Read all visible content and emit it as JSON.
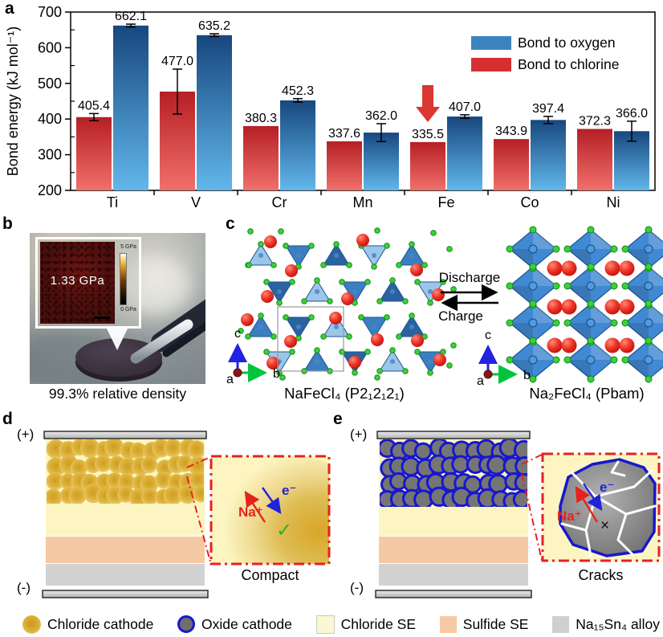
{
  "figure_labels": {
    "a": "a",
    "b": "b",
    "c": "c",
    "d": "d",
    "e": "e"
  },
  "chart_data": {
    "type": "bar",
    "ylabel": "Bond energy (kJ mol⁻¹)",
    "ylim": [
      200,
      700
    ],
    "yticks": [
      200,
      300,
      400,
      500,
      600,
      700
    ],
    "categories": [
      "Ti",
      "V",
      "Cr",
      "Mn",
      "Fe",
      "Co",
      "Ni"
    ],
    "series": [
      {
        "name": "Bond to chlorine",
        "values": [
          405.4,
          477.0,
          380.3,
          337.6,
          335.5,
          343.9,
          372.3
        ],
        "labels": [
          "405.4",
          "477.0",
          "380.3",
          "337.6",
          "335.5",
          "343.9",
          "372.3"
        ],
        "errors": [
          10,
          63,
          0,
          0,
          0,
          0,
          0
        ],
        "color_top": "#b51f25",
        "color_bottom": "#f1706b",
        "legend_color": "#d62f31"
      },
      {
        "name": "Bond to oxygen",
        "values": [
          662.1,
          635.2,
          452.3,
          362.0,
          407.0,
          397.4,
          366.0
        ],
        "labels": [
          "662.1",
          "635.2",
          "452.3",
          "362.0",
          "407.0",
          "397.4",
          "366.0"
        ],
        "errors": [
          4,
          4,
          5,
          25,
          5,
          10,
          28
        ],
        "color_top": "#17477e",
        "color_bottom": "#61b7eb",
        "legend_color": "#3c84c0"
      }
    ],
    "legend": [
      "Bond to oxygen",
      "Bond to chlorine"
    ],
    "legend_position": "upper right",
    "grid": false,
    "highlight": {
      "category": "Fe",
      "marker": "down-arrow",
      "color": "#d8382f"
    }
  },
  "panel_b": {
    "inset_value": "1.33 GPa",
    "colorbar_max": "5 GPa",
    "colorbar_min": "0 GPa",
    "caption": "99.3% relative density"
  },
  "panel_c": {
    "left_structure": "NaFeCl₄ (P2₁2₁2₁)",
    "right_structure": "Na₂FeCl₄ (Pbam)",
    "forward_label": "Discharge",
    "reverse_label": "Charge",
    "axis": {
      "a": "a",
      "b": "b",
      "c": "c"
    }
  },
  "panel_d": {
    "positive": "(+)",
    "negative": "(-)",
    "ion_label": "Na⁺",
    "electron_label": "e⁻",
    "status_mark": "✓",
    "caption": "Compact"
  },
  "panel_e": {
    "positive": "(+)",
    "negative": "(-)",
    "ion_label": "Na⁺",
    "electron_label": "e⁻",
    "status_mark": "×",
    "caption": "Cracks"
  },
  "legend_bar": {
    "items": [
      {
        "icon": "chloride-cathode-sphere",
        "label": "Chloride cathode"
      },
      {
        "icon": "oxide-cathode-sphere",
        "label": "Oxide cathode"
      },
      {
        "icon": "chloride-se-swatch",
        "label": "Chloride SE"
      },
      {
        "icon": "sulfide-se-swatch",
        "label": "Sulfide SE"
      },
      {
        "icon": "alloy-swatch",
        "label": "Na₁₅Sn₄ alloy"
      }
    ]
  },
  "colors": {
    "chart_blue": "#3c84c0",
    "chart_red": "#d62f31",
    "highlight_arrow": "#d8382f",
    "chloride_cathode": "#ddb23a",
    "oxide_ring": "#1717cf",
    "oxide_fill": "#757575",
    "chloride_se": "#fcf5c2",
    "sulfide_se": "#f6c9a5",
    "alloy": "#d2d2d2",
    "inset_border": "#e8211d",
    "ion_red": "#e8211d",
    "electron_blue": "#2222d8",
    "check_green": "#28b428"
  }
}
